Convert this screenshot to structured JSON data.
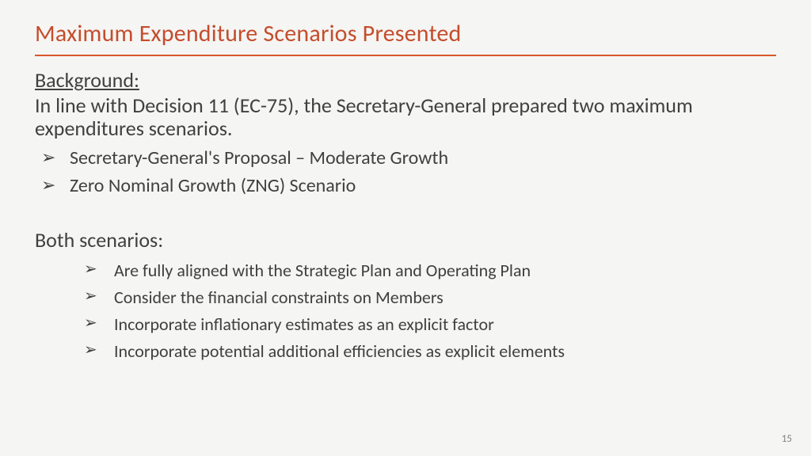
{
  "colors": {
    "slide_bg": "#f5f5f3",
    "title_color": "#c44d2c",
    "rule_color": "#d9572b",
    "text_color": "#404040",
    "pagenum_color": "#808080"
  },
  "title": "Maximum Expenditure Scenarios Presented",
  "background": {
    "heading": "Background:",
    "intro": "In line with Decision 11 (EC-75), the Secretary-General prepared two maximum expenditures scenarios.",
    "items": [
      "Secretary-General's Proposal – Moderate Growth",
      "Zero Nominal Growth (ZNG) Scenario"
    ]
  },
  "both": {
    "heading": "Both scenarios:",
    "items": [
      "Are fully aligned with the Strategic Plan and Operating Plan",
      "Consider the financial constraints on Members",
      "Incorporate inflationary estimates as an explicit factor",
      "Incorporate potential additional efficiencies as explicit elements"
    ]
  },
  "page_number": "15"
}
